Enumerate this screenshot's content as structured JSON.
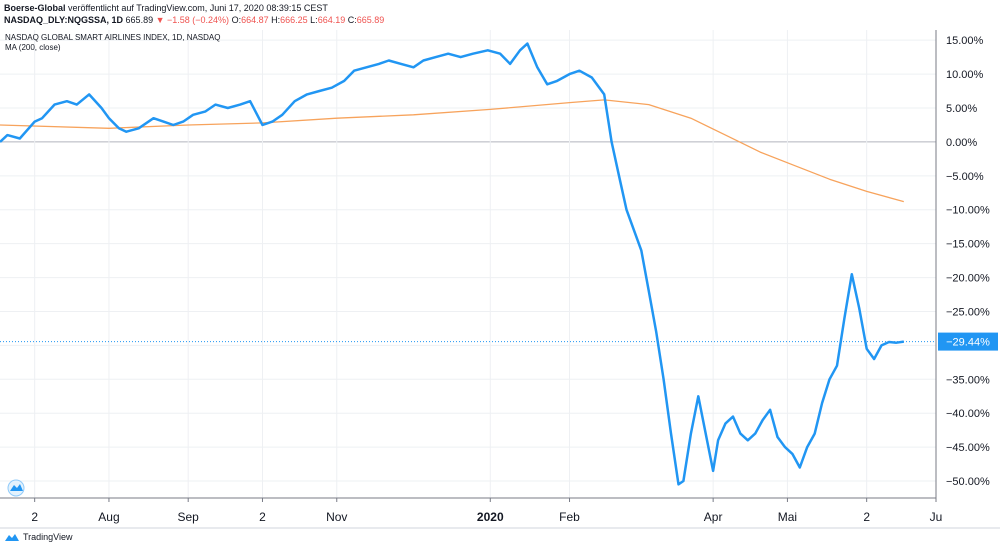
{
  "header": {
    "publisher": "Boerse-Global",
    "published_text": "veröffentlicht auf TradingView.com, Juni 17, 2020 08:39:15 CEST",
    "symbol": "NASDAQ_DLY:NQGSSA, 1D",
    "last": "665.89",
    "change": "▼ −1.58 (−0.24%)",
    "o_label": "O:",
    "o_value": "664.87",
    "h_label": "H:",
    "h_value": "666.25",
    "l_label": "L:",
    "l_value": "664.19",
    "c_label": "C:",
    "c_value": "665.89"
  },
  "legend": {
    "series_title": "NASDAQ GLOBAL SMART AIRLINES INDEX, 1D, NASDAQ",
    "ma_title": "MA (200, close)"
  },
  "footer": {
    "brand": "TradingView"
  },
  "colors": {
    "price": "#2196f3",
    "ma": "#f7a35c",
    "grid": "#eef0f3",
    "zero": "#b2b5be",
    "current": "#2196f3",
    "text": "#131722"
  },
  "chart_data": {
    "type": "line",
    "y_unit": "%",
    "ylim": [
      -52.5,
      16.5
    ],
    "y_ticks": [
      15,
      10,
      5,
      0,
      -5,
      -10,
      -15,
      -20,
      -25,
      -30,
      -35,
      -40,
      -45,
      -50
    ],
    "y_tick_labels": [
      "15.00%",
      "10.00%",
      "5.00%",
      "0.00%",
      "−5.00%",
      "−10.00%",
      "−15.00%",
      "−20.00%",
      "−25.00%",
      "−30.00%",
      "−35.00%",
      "−40.00%",
      "−45.00%",
      "−50.00%"
    ],
    "x_tick_labels": [
      "2",
      "Aug",
      "Sep",
      "2",
      "Nov",
      "2020",
      "Feb",
      "Apr",
      "Mai",
      "2",
      "Ju"
    ],
    "x_ticks": [
      "2019-07-02",
      "2019-08-01",
      "2019-09-02",
      "2019-10-02",
      "2019-11-01",
      "2020-01-02",
      "2020-02-03",
      "2020-04-01",
      "2020-05-01",
      "2020-06-02",
      "2020-06-30"
    ],
    "xlim": [
      "2019-06-18",
      "2020-06-30"
    ],
    "current_label": "−29.44%",
    "current_value": -29.44,
    "zero_line": 0,
    "grid": true,
    "series": [
      {
        "name": "NASDAQ GLOBAL SMART AIRLINES INDEX",
        "x": [
          "2019-06-18",
          "2019-06-21",
          "2019-06-26",
          "2019-07-02",
          "2019-07-05",
          "2019-07-10",
          "2019-07-15",
          "2019-07-19",
          "2019-07-24",
          "2019-07-29",
          "2019-08-01",
          "2019-08-05",
          "2019-08-08",
          "2019-08-13",
          "2019-08-19",
          "2019-08-23",
          "2019-08-27",
          "2019-08-31",
          "2019-09-04",
          "2019-09-09",
          "2019-09-13",
          "2019-09-18",
          "2019-09-23",
          "2019-09-27",
          "2019-10-02",
          "2019-10-06",
          "2019-10-10",
          "2019-10-15",
          "2019-10-20",
          "2019-10-25",
          "2019-10-30",
          "2019-11-04",
          "2019-11-08",
          "2019-11-13",
          "2019-11-18",
          "2019-11-22",
          "2019-11-27",
          "2019-12-02",
          "2019-12-06",
          "2019-12-11",
          "2019-12-16",
          "2019-12-21",
          "2019-12-26",
          "2020-01-01",
          "2020-01-06",
          "2020-01-10",
          "2020-01-14",
          "2020-01-17",
          "2020-01-21",
          "2020-01-25",
          "2020-01-29",
          "2020-02-03",
          "2020-02-07",
          "2020-02-12",
          "2020-02-17",
          "2020-02-20",
          "2020-02-23",
          "2020-02-26",
          "2020-02-29",
          "2020-03-03",
          "2020-03-06",
          "2020-03-09",
          "2020-03-12",
          "2020-03-15",
          "2020-03-18",
          "2020-03-20",
          "2020-03-23",
          "2020-03-26",
          "2020-03-29",
          "2020-04-01",
          "2020-04-03",
          "2020-04-06",
          "2020-04-09",
          "2020-04-12",
          "2020-04-15",
          "2020-04-18",
          "2020-04-21",
          "2020-04-24",
          "2020-04-27",
          "2020-04-30",
          "2020-05-03",
          "2020-05-06",
          "2020-05-09",
          "2020-05-12",
          "2020-05-15",
          "2020-05-18",
          "2020-05-21",
          "2020-05-24",
          "2020-05-27",
          "2020-05-30",
          "2020-06-02",
          "2020-06-05",
          "2020-06-08",
          "2020-06-11",
          "2020-06-14",
          "2020-06-17"
        ],
        "values": [
          0.0,
          1.0,
          0.5,
          3.0,
          3.5,
          5.5,
          6.0,
          5.5,
          7.0,
          5.0,
          3.5,
          2.0,
          1.5,
          2.0,
          3.5,
          3.0,
          2.5,
          3.0,
          4.0,
          4.5,
          5.5,
          5.0,
          5.5,
          6.0,
          2.5,
          3.0,
          4.0,
          6.0,
          7.0,
          7.5,
          8.0,
          9.0,
          10.5,
          11.0,
          11.5,
          12.0,
          11.5,
          11.0,
          12.0,
          12.5,
          13.0,
          12.5,
          13.0,
          13.5,
          13.0,
          11.5,
          13.5,
          14.5,
          11.0,
          8.5,
          9.0,
          10.0,
          10.5,
          9.5,
          7.0,
          0.0,
          -5.0,
          -10.0,
          -13.0,
          -16.0,
          -22.0,
          -28.0,
          -35.0,
          -43.0,
          -50.5,
          -50.0,
          -43.0,
          -37.5,
          -43.0,
          -48.5,
          -44.0,
          -41.5,
          -40.5,
          -43.0,
          -44.0,
          -43.0,
          -41.0,
          -39.5,
          -43.5,
          -45.0,
          -46.0,
          -48.0,
          -45.0,
          -43.0,
          -38.5,
          -35.0,
          -33.0,
          -26.0,
          -19.5,
          -24.5,
          -30.5,
          -32.0,
          -30.0,
          -29.5,
          -29.6,
          -29.44
        ]
      },
      {
        "name": "MA (200, close)",
        "x": [
          "2019-06-18",
          "2019-08-01",
          "2019-09-02",
          "2019-10-02",
          "2019-11-01",
          "2019-12-02",
          "2020-01-02",
          "2020-02-03",
          "2020-02-17",
          "2020-03-06",
          "2020-03-23",
          "2020-04-06",
          "2020-04-20",
          "2020-05-04",
          "2020-05-18",
          "2020-06-02",
          "2020-06-17"
        ],
        "values": [
          2.5,
          2.0,
          2.5,
          2.8,
          3.5,
          4.0,
          4.8,
          5.8,
          6.2,
          5.5,
          3.5,
          1.0,
          -1.5,
          -3.5,
          -5.5,
          -7.3,
          -8.8
        ]
      }
    ]
  }
}
